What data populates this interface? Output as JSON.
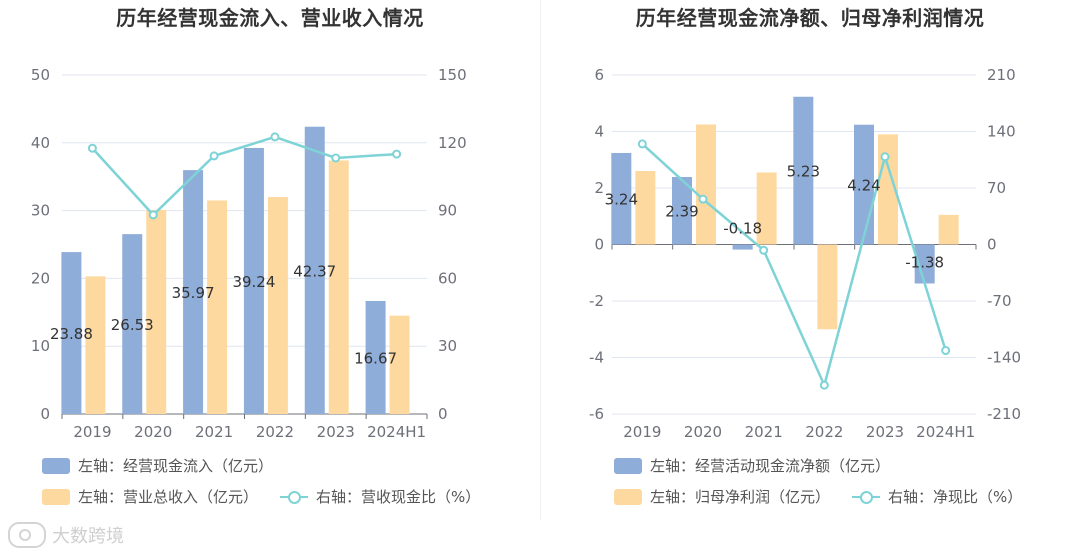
{
  "chart_data": [
    {
      "type": "bar",
      "title": "历年经营现金流入、营业收入情况",
      "categories": [
        "2019",
        "2020",
        "2021",
        "2022",
        "2023",
        "2024H1"
      ],
      "left_axis": {
        "min": 0,
        "max": 50,
        "ticks": [
          "0",
          "10",
          "20",
          "30",
          "40",
          "50"
        ]
      },
      "right_axis": {
        "min": 0,
        "max": 150,
        "ticks": [
          "0",
          "30",
          "60",
          "90",
          "120",
          "150"
        ]
      },
      "series": [
        {
          "name": "左轴：经营现金流入（亿元）",
          "type": "bar",
          "axis": "left",
          "color": "#8fadd9",
          "values": [
            23.88,
            26.53,
            35.97,
            39.24,
            42.37,
            16.67
          ],
          "labels": [
            "23.88",
            "26.53",
            "35.97",
            "39.24",
            "42.37",
            "16.67"
          ]
        },
        {
          "name": "左轴：营业总收入（亿元）",
          "type": "bar",
          "axis": "left",
          "color": "#fdd9a0",
          "values": [
            20.3,
            30.1,
            31.5,
            32.0,
            37.4,
            14.5
          ]
        },
        {
          "name": "右轴：营收现金比（%）",
          "type": "line",
          "axis": "right",
          "color": "#7ed3d6",
          "values": [
            117.6,
            88.1,
            114.2,
            122.6,
            113.3,
            115.0
          ]
        }
      ]
    },
    {
      "type": "bar",
      "title": "历年经营现金流净额、归母净利润情况",
      "categories": [
        "2019",
        "2020",
        "2021",
        "2022",
        "2023",
        "2024H1"
      ],
      "left_axis": {
        "min": -6,
        "max": 6,
        "ticks": [
          "-6",
          "-4",
          "-2",
          "0",
          "2",
          "4",
          "6"
        ]
      },
      "right_axis": {
        "min": -210,
        "max": 210,
        "ticks": [
          "-210",
          "-140",
          "-70",
          "0",
          "70",
          "140",
          "210"
        ]
      },
      "series": [
        {
          "name": "左轴：经营活动现金流净额（亿元）",
          "type": "bar",
          "axis": "left",
          "color": "#8fadd9",
          "values": [
            3.24,
            2.39,
            -0.18,
            5.23,
            4.24,
            -1.38
          ],
          "labels": [
            "3.24",
            "2.39",
            "-0.18",
            "5.23",
            "4.24",
            "-1.38"
          ]
        },
        {
          "name": "左轴：归母净利润（亿元）",
          "type": "bar",
          "axis": "left",
          "color": "#fdd9a0",
          "values": [
            2.6,
            4.25,
            2.55,
            -3.0,
            3.9,
            1.05
          ]
        },
        {
          "name": "右轴：净现比（%）",
          "type": "line",
          "axis": "right",
          "color": "#7ed3d6",
          "values": [
            124.6,
            56.2,
            -7.1,
            -174.3,
            108.7,
            -131.4
          ]
        }
      ]
    }
  ],
  "watermark": "大数跨境"
}
